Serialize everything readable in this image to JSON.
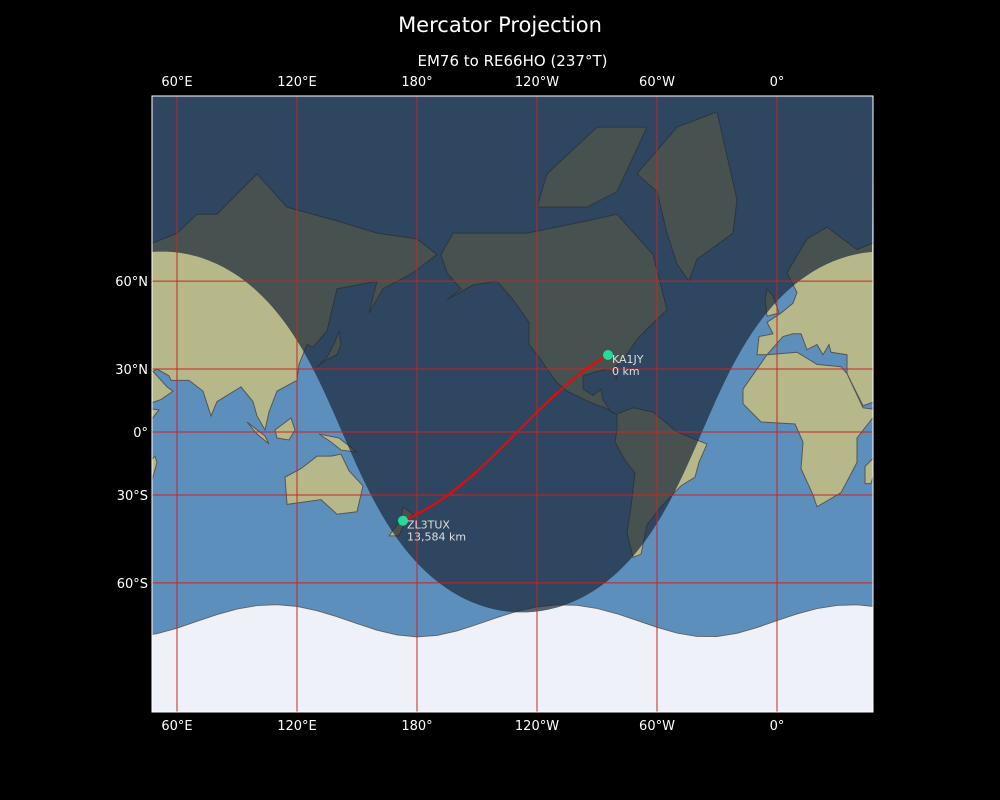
{
  "title": "Mercator Projection",
  "subtitle": "EM76 to RE66HO (237°T)",
  "map": {
    "projection": "Mercator",
    "lon_ticks": [
      {
        "lon": 60,
        "label": "60°E"
      },
      {
        "lon": 120,
        "label": "120°E"
      },
      {
        "lon": 180,
        "label": "180°"
      },
      {
        "lon": 240,
        "label": "120°W"
      },
      {
        "lon": 300,
        "label": "60°W"
      },
      {
        "lon": 360,
        "label": "0°"
      }
    ],
    "lat_ticks": [
      {
        "lat": 60,
        "label": "60°N"
      },
      {
        "lat": 30,
        "label": "30°N"
      },
      {
        "lat": 0,
        "label": "0°"
      },
      {
        "lat": -30,
        "label": "30°S"
      },
      {
        "lat": -60,
        "label": "60°S"
      }
    ],
    "gridline_color": "#cc2222",
    "path_color": "#ff0000",
    "marker_color": "#22dd99",
    "night_shading": true,
    "stations": [
      {
        "call": "KA1JY",
        "distance": "0 km",
        "lat": 35.9,
        "lon": -84.5
      },
      {
        "call": "ZL3TUX",
        "distance": "13,584 km",
        "lat": -40.5,
        "lon": 173
      }
    ]
  }
}
